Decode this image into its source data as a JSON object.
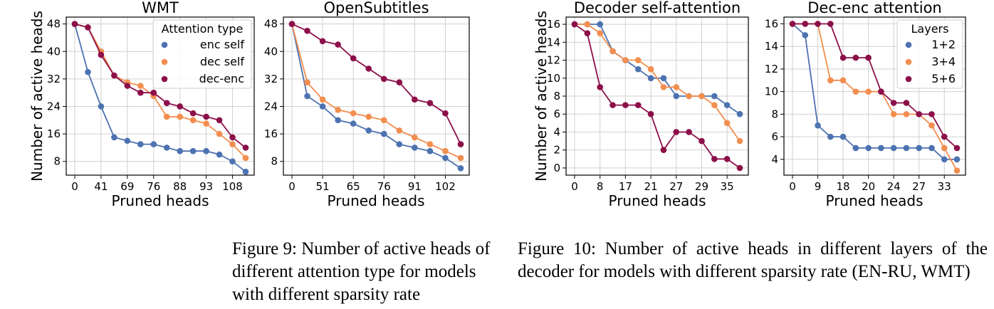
{
  "chart_data": [
    {
      "type": "line",
      "title": "WMT",
      "xlabel": "Pruned heads",
      "ylabel": "Number of active heads",
      "x_tick_labels": [
        "0",
        "41",
        "69",
        "76",
        "88",
        "93",
        "108"
      ],
      "y_ticks": [
        8,
        16,
        24,
        32,
        40,
        48
      ],
      "ylim": [
        4,
        50
      ],
      "grid": true,
      "legend": {
        "title": "Attention type",
        "placement": "top-right"
      },
      "series": [
        {
          "name": "enc self",
          "color": "#4c72b0",
          "values": [
            48,
            34,
            24,
            15,
            14,
            13,
            13,
            12,
            11,
            11,
            11,
            10,
            8,
            5
          ]
        },
        {
          "name": "dec self",
          "color": "#f28e4f",
          "values": [
            48,
            47,
            40,
            33,
            31,
            30,
            27,
            21,
            21,
            20,
            19,
            16,
            13,
            9
          ]
        },
        {
          "name": "dec-enc",
          "color": "#8c0f4a",
          "values": [
            48,
            47,
            39,
            33,
            30,
            28,
            28,
            25,
            24,
            22,
            21,
            20,
            15,
            12
          ]
        }
      ]
    },
    {
      "type": "line",
      "title": "OpenSubtitles",
      "xlabel": "Pruned heads",
      "ylabel": "",
      "x_tick_labels": [
        "0",
        "51",
        "65",
        "76",
        "91",
        "102"
      ],
      "y_ticks": [
        8,
        16,
        24,
        32,
        40,
        48
      ],
      "ylim": [
        4,
        50
      ],
      "grid": true,
      "series": [
        {
          "name": "enc self",
          "color": "#4c72b0",
          "values": [
            48,
            27,
            24,
            20,
            19,
            17,
            16,
            13,
            12,
            11,
            9,
            6
          ]
        },
        {
          "name": "dec self",
          "color": "#f28e4f",
          "values": [
            48,
            31,
            26,
            23,
            22,
            21,
            20,
            17,
            15,
            13,
            11,
            9
          ]
        },
        {
          "name": "dec-enc",
          "color": "#8c0f4a",
          "values": [
            48,
            46,
            43,
            42,
            38,
            35,
            32,
            31,
            26,
            25,
            22,
            13
          ]
        }
      ]
    },
    {
      "type": "line",
      "title": "Decoder self-attention",
      "xlabel": "Pruned heads",
      "ylabel": "Number of active heads",
      "x_tick_labels": [
        "0",
        "8",
        "17",
        "21",
        "27",
        "29",
        "35"
      ],
      "y_ticks": [
        0,
        2,
        4,
        6,
        8,
        10,
        12,
        14,
        16
      ],
      "ylim": [
        -0.8,
        16.8
      ],
      "grid": true,
      "series": [
        {
          "name": "1+2",
          "color": "#4c72b0",
          "values": [
            16,
            16,
            16,
            13,
            12,
            11,
            10,
            10,
            8,
            8,
            8,
            8,
            7,
            6
          ]
        },
        {
          "name": "3+4",
          "color": "#f28e4f",
          "values": [
            16,
            16,
            15,
            13,
            12,
            12,
            11,
            9,
            9,
            8,
            8,
            7,
            5,
            3
          ]
        },
        {
          "name": "5+6",
          "color": "#8c0f4a",
          "values": [
            16,
            15,
            9,
            7,
            7,
            7,
            6,
            2,
            4,
            4,
            3,
            1,
            1,
            0
          ]
        }
      ]
    },
    {
      "type": "line",
      "title": "Dec-enc attention",
      "xlabel": "Pruned heads",
      "ylabel": "",
      "x_tick_labels": [
        "0",
        "9",
        "18",
        "20",
        "24",
        "27",
        "33"
      ],
      "y_ticks": [
        4,
        6,
        8,
        10,
        12,
        14,
        16
      ],
      "ylim": [
        2.6,
        16.6
      ],
      "grid": true,
      "legend": {
        "title": "Layers",
        "placement": "top-right"
      },
      "series": [
        {
          "name": "1+2",
          "color": "#4c72b0",
          "values": [
            16,
            15,
            7,
            6,
            6,
            5,
            5,
            5,
            5,
            5,
            5,
            5,
            4,
            4
          ]
        },
        {
          "name": "3+4",
          "color": "#f28e4f",
          "values": [
            16,
            16,
            16,
            11,
            11,
            10,
            10,
            10,
            8,
            8,
            8,
            7,
            5,
            3
          ]
        },
        {
          "name": "5+6",
          "color": "#8c0f4a",
          "values": [
            16,
            16,
            16,
            16,
            13,
            13,
            13,
            10,
            9,
            9,
            8,
            8,
            6,
            5
          ]
        }
      ]
    }
  ],
  "captions": {
    "fig9": "Figure 9: Number of active heads of different attention type for models with different sparsity rate",
    "fig10": "Figure 10: Number of active heads in different layers of the decoder for models with different sparsity rate (EN-RU, WMT)"
  }
}
